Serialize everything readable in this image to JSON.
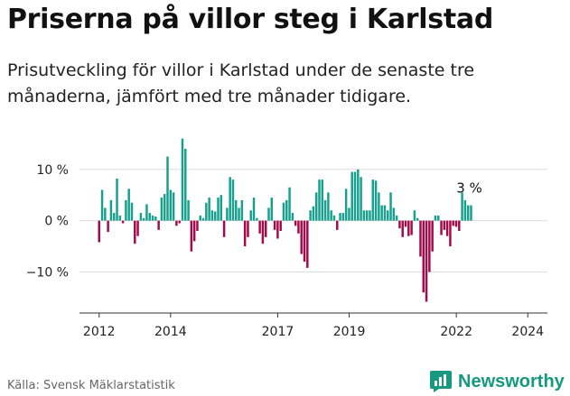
{
  "header": {
    "title": "Priserna på villor steg i Karlstad",
    "subtitle": "Prisutveckling för villor i Karlstad under de senaste tre månaderna, jämfört med tre månader tidigare."
  },
  "footer": {
    "source": "Källa: Svensk Mäklarstatistik",
    "brand": "Newsworthy"
  },
  "colors": {
    "positive": "#17a08d",
    "negative": "#a30a4a",
    "grid": "#dddddd",
    "axis": "#333333",
    "brand": "#16997e"
  },
  "chart_data": {
    "type": "bar",
    "title": "Priserna på villor steg i Karlstad",
    "xlabel": "",
    "ylabel": "",
    "ylim": [
      -18,
      14
    ],
    "xlim": [
      2011.45,
      2024.55
    ],
    "grid": true,
    "y_ticks": [
      {
        "value": 10,
        "label": "10 %"
      },
      {
        "value": 0,
        "label": "0 %"
      },
      {
        "value": -10,
        "label": "−10 %"
      }
    ],
    "x_ticks": [
      {
        "value": 2012,
        "label": "2012"
      },
      {
        "value": 2014,
        "label": "2014"
      },
      {
        "value": 2017,
        "label": "2017"
      },
      {
        "value": 2019,
        "label": "2019"
      },
      {
        "value": 2022,
        "label": "2022"
      },
      {
        "value": 2024,
        "label": "2024"
      }
    ],
    "start": 2012.0,
    "step": 0.0833,
    "values": [
      -4.2,
      6,
      2.5,
      -2.2,
      4,
      1.5,
      8.2,
      1,
      -0.5,
      4,
      6.2,
      3.5,
      -4.5,
      -3,
      1.5,
      0.5,
      3.2,
      1.5,
      1,
      0.8,
      -1.8,
      4.5,
      5.2,
      12.5,
      6,
      5.5,
      -1,
      -0.5,
      16,
      14,
      4,
      -6,
      -4,
      -2,
      1,
      0.5,
      3.5,
      4.5,
      2,
      1.8,
      4.5,
      5,
      -3.2,
      2.5,
      8.5,
      8,
      4,
      2.5,
      4,
      -5,
      -3.2,
      2,
      4.5,
      0.5,
      -2.5,
      -4.5,
      -3.2,
      2.5,
      4.5,
      -1.8,
      -3.5,
      -2,
      3.5,
      4,
      6.5,
      1.5,
      -1,
      -2.5,
      -6.5,
      -8,
      -9.2,
      2,
      2.8,
      5.5,
      8,
      8,
      4,
      5.5,
      2,
      1,
      -1.8,
      1.5,
      1.5,
      6.2,
      2.5,
      9.5,
      9.5,
      10,
      8.5,
      2,
      2,
      2,
      8,
      7.8,
      5.5,
      3,
      3,
      2,
      5.5,
      2.5,
      1,
      -1.5,
      -3.2,
      -1.2,
      -3,
      -2.8,
      2,
      0.5,
      -7,
      -14,
      -15.8,
      -10,
      -6,
      1,
      1,
      -2.8,
      -1.8,
      -3,
      -5,
      -1,
      -1.2,
      -2,
      5.5,
      4,
      3,
      3
    ]
  },
  "last_value_label": "3 %"
}
